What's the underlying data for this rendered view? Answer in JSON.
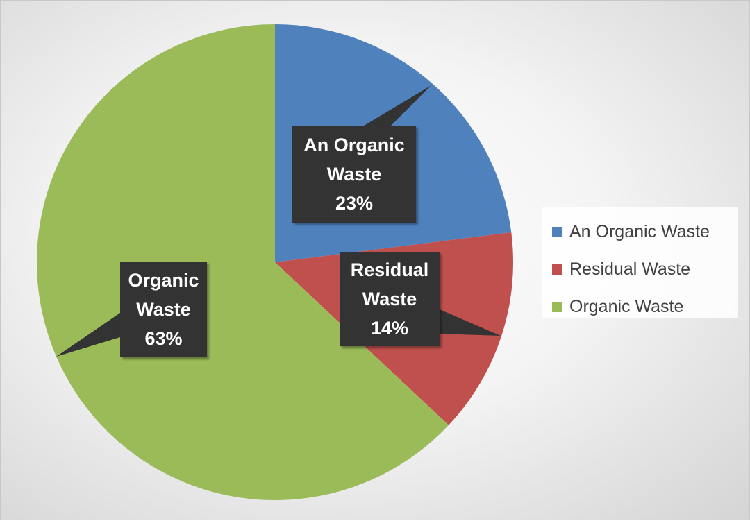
{
  "chart_data": {
    "type": "pie",
    "categories": [
      "An Organic Waste",
      "Residual Waste",
      "Organic Waste"
    ],
    "values": [
      23,
      14,
      63
    ],
    "value_labels": [
      "23%",
      "14%",
      "63%"
    ],
    "colors": [
      "#4f81bd",
      "#c0504d",
      "#9bbb59"
    ],
    "legend": "right"
  }
}
